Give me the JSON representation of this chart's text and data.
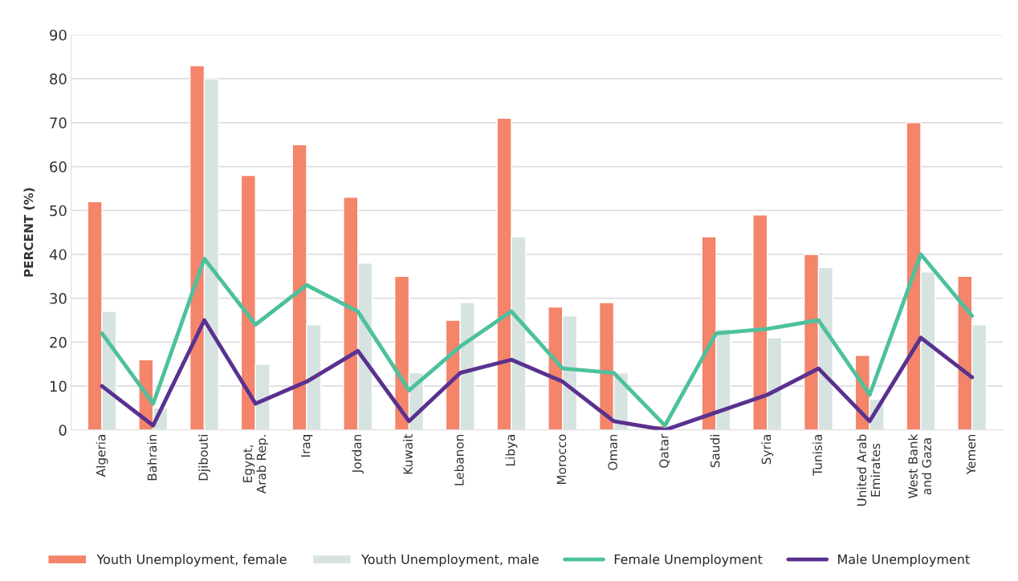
{
  "chart_data": {
    "type": "bar",
    "ylabel": "PERCENT (%)",
    "categories": [
      "Algeria",
      "Bahrain",
      "Djibouti",
      "Egypt,\nArab Rep.",
      "Iraq",
      "Jordan",
      "Kuwait",
      "Lebanon",
      "Libya",
      "Morocco",
      "Oman",
      "Qatar",
      "Saudi",
      "Syria",
      "Tunisia",
      "United Arab\nEmirates",
      "West Bank\nand Gaza",
      "Yemen"
    ],
    "series": [
      {
        "name": "Youth Unemployment, female",
        "color": "#f4846a",
        "values": [
          52,
          16,
          83,
          58,
          65,
          53,
          35,
          25,
          71,
          28,
          29,
          1,
          44,
          49,
          40,
          17,
          70,
          35
        ]
      },
      {
        "name": "Youth Unemployment, male",
        "color": "#d7e3e0",
        "values": [
          27,
          5,
          80,
          15,
          24,
          38,
          13,
          29,
          44,
          26,
          13,
          null,
          23,
          21,
          37,
          7,
          36,
          24
        ]
      },
      {
        "name": "Female Unemployment",
        "type": "line",
        "color": "#4cc19c",
        "values": [
          22,
          6,
          39,
          24,
          33,
          27,
          9,
          19,
          27,
          14,
          13,
          1,
          22,
          23,
          25,
          8,
          40,
          26
        ]
      },
      {
        "name": "Male Unemployment",
        "type": "line",
        "color": "#59318f",
        "values": [
          10,
          1,
          25,
          6,
          11,
          18,
          2,
          13,
          16,
          11,
          2,
          0,
          4,
          8,
          14,
          2,
          21,
          12
        ]
      }
    ],
    "ylim": [
      0,
      90
    ],
    "yticks": [
      0,
      10,
      20,
      30,
      40,
      50,
      60,
      70,
      80,
      90
    ],
    "grid": "y",
    "legend": "bottom"
  }
}
